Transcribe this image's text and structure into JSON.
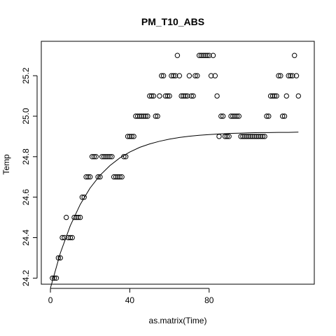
{
  "chart_data": {
    "type": "scatter",
    "title": "PM_T10_ABS",
    "xlabel": "as.matrix(Time)",
    "ylabel": "Temp",
    "xlim": [
      -4.6,
      133
    ],
    "ylim": [
      24.17,
      25.37
    ],
    "x_ticks": [
      0,
      40,
      80
    ],
    "y_ticks": [
      24.2,
      24.4,
      24.6,
      24.8,
      25.0,
      25.2
    ],
    "y_tick_labels": [
      "24.2",
      "24.4",
      "24.6",
      "24.8",
      "25.0",
      "25.2"
    ],
    "grid": false,
    "legend": "none",
    "points": [
      [
        1,
        24.2
      ],
      [
        2,
        24.2
      ],
      [
        3,
        24.2
      ],
      [
        4,
        24.3
      ],
      [
        5,
        24.3
      ],
      [
        6,
        24.4
      ],
      [
        7,
        24.4
      ],
      [
        8,
        24.5
      ],
      [
        9,
        24.4
      ],
      [
        10,
        24.4
      ],
      [
        11,
        24.4
      ],
      [
        12,
        24.5
      ],
      [
        13,
        24.5
      ],
      [
        14,
        24.5
      ],
      [
        15,
        24.5
      ],
      [
        16,
        24.6
      ],
      [
        17,
        24.6
      ],
      [
        18,
        24.7
      ],
      [
        19,
        24.7
      ],
      [
        20,
        24.7
      ],
      [
        21,
        24.8
      ],
      [
        22,
        24.8
      ],
      [
        23,
        24.8
      ],
      [
        24,
        24.7
      ],
      [
        25,
        24.7
      ],
      [
        26,
        24.8
      ],
      [
        27,
        24.8
      ],
      [
        28,
        24.8
      ],
      [
        29,
        24.8
      ],
      [
        30,
        24.8
      ],
      [
        31,
        24.8
      ],
      [
        32,
        24.7
      ],
      [
        33,
        24.7
      ],
      [
        34,
        24.7
      ],
      [
        35,
        24.7
      ],
      [
        36,
        24.7
      ],
      [
        37,
        24.8
      ],
      [
        38,
        24.8
      ],
      [
        39,
        24.9
      ],
      [
        40,
        24.9
      ],
      [
        41,
        24.9
      ],
      [
        42,
        24.9
      ],
      [
        43,
        25.0
      ],
      [
        44,
        25.0
      ],
      [
        45,
        25.0
      ],
      [
        46,
        25.0
      ],
      [
        47,
        25.0
      ],
      [
        48,
        25.0
      ],
      [
        49,
        25.0
      ],
      [
        50,
        25.1
      ],
      [
        51,
        25.1
      ],
      [
        52,
        25.1
      ],
      [
        53,
        25.0
      ],
      [
        54,
        25.0
      ],
      [
        55,
        25.1
      ],
      [
        56,
        25.2
      ],
      [
        57,
        25.2
      ],
      [
        58,
        25.1
      ],
      [
        59,
        25.1
      ],
      [
        60,
        25.1
      ],
      [
        61,
        25.2
      ],
      [
        62,
        25.2
      ],
      [
        63,
        25.2
      ],
      [
        64,
        25.3
      ],
      [
        65,
        25.2
      ],
      [
        66,
        25.1
      ],
      [
        67,
        25.1
      ],
      [
        68,
        25.1
      ],
      [
        69,
        25.1
      ],
      [
        70,
        25.2
      ],
      [
        71,
        25.1
      ],
      [
        72,
        25.1
      ],
      [
        73,
        25.2
      ],
      [
        74,
        25.2
      ],
      [
        75,
        25.3
      ],
      [
        76,
        25.3
      ],
      [
        77,
        25.3
      ],
      [
        78,
        25.3
      ],
      [
        79,
        25.3
      ],
      [
        80,
        25.3
      ],
      [
        81,
        25.2
      ],
      [
        82,
        25.3
      ],
      [
        83,
        25.2
      ],
      [
        84,
        25.1
      ],
      [
        85,
        24.9
      ],
      [
        86,
        25.0
      ],
      [
        87,
        25.0
      ],
      [
        88,
        24.9
      ],
      [
        89,
        24.9
      ],
      [
        90,
        24.9
      ],
      [
        91,
        25.0
      ],
      [
        92,
        25.0
      ],
      [
        93,
        25.0
      ],
      [
        94,
        25.0
      ],
      [
        95,
        25.0
      ],
      [
        96,
        24.9
      ],
      [
        97,
        24.9
      ],
      [
        98,
        24.9
      ],
      [
        99,
        24.9
      ],
      [
        100,
        24.9
      ],
      [
        101,
        24.9
      ],
      [
        102,
        24.9
      ],
      [
        103,
        24.9
      ],
      [
        104,
        24.9
      ],
      [
        105,
        24.9
      ],
      [
        106,
        24.9
      ],
      [
        107,
        24.9
      ],
      [
        108,
        24.9
      ],
      [
        109,
        25.0
      ],
      [
        110,
        25.0
      ],
      [
        111,
        25.1
      ],
      [
        112,
        25.1
      ],
      [
        113,
        25.1
      ],
      [
        114,
        25.1
      ],
      [
        115,
        25.2
      ],
      [
        116,
        25.2
      ],
      [
        117,
        25.0
      ],
      [
        118,
        25.0
      ],
      [
        119,
        25.1
      ],
      [
        120,
        25.2
      ],
      [
        121,
        25.2
      ],
      [
        122,
        25.2
      ],
      [
        123,
        25.3
      ],
      [
        124,
        25.2
      ],
      [
        125,
        25.1
      ]
    ],
    "fitted_curve": {
      "type": "exponential",
      "x": [
        0,
        5,
        10,
        15,
        20,
        25,
        30,
        35,
        40,
        45,
        50,
        55,
        60,
        65,
        70,
        75,
        80,
        85,
        90,
        95,
        100,
        105,
        110,
        115,
        120,
        125
      ],
      "y": [
        24.15,
        24.324,
        24.459,
        24.564,
        24.645,
        24.708,
        24.756,
        24.794,
        24.823,
        24.846,
        24.863,
        24.876,
        24.887,
        24.895,
        24.901,
        24.906,
        24.909,
        24.912,
        24.915,
        24.916,
        24.918,
        24.919,
        24.919,
        24.92,
        24.92,
        24.921
      ]
    },
    "colors": {
      "points": "#000000",
      "curve": "#000000",
      "axes": "#000000"
    }
  }
}
